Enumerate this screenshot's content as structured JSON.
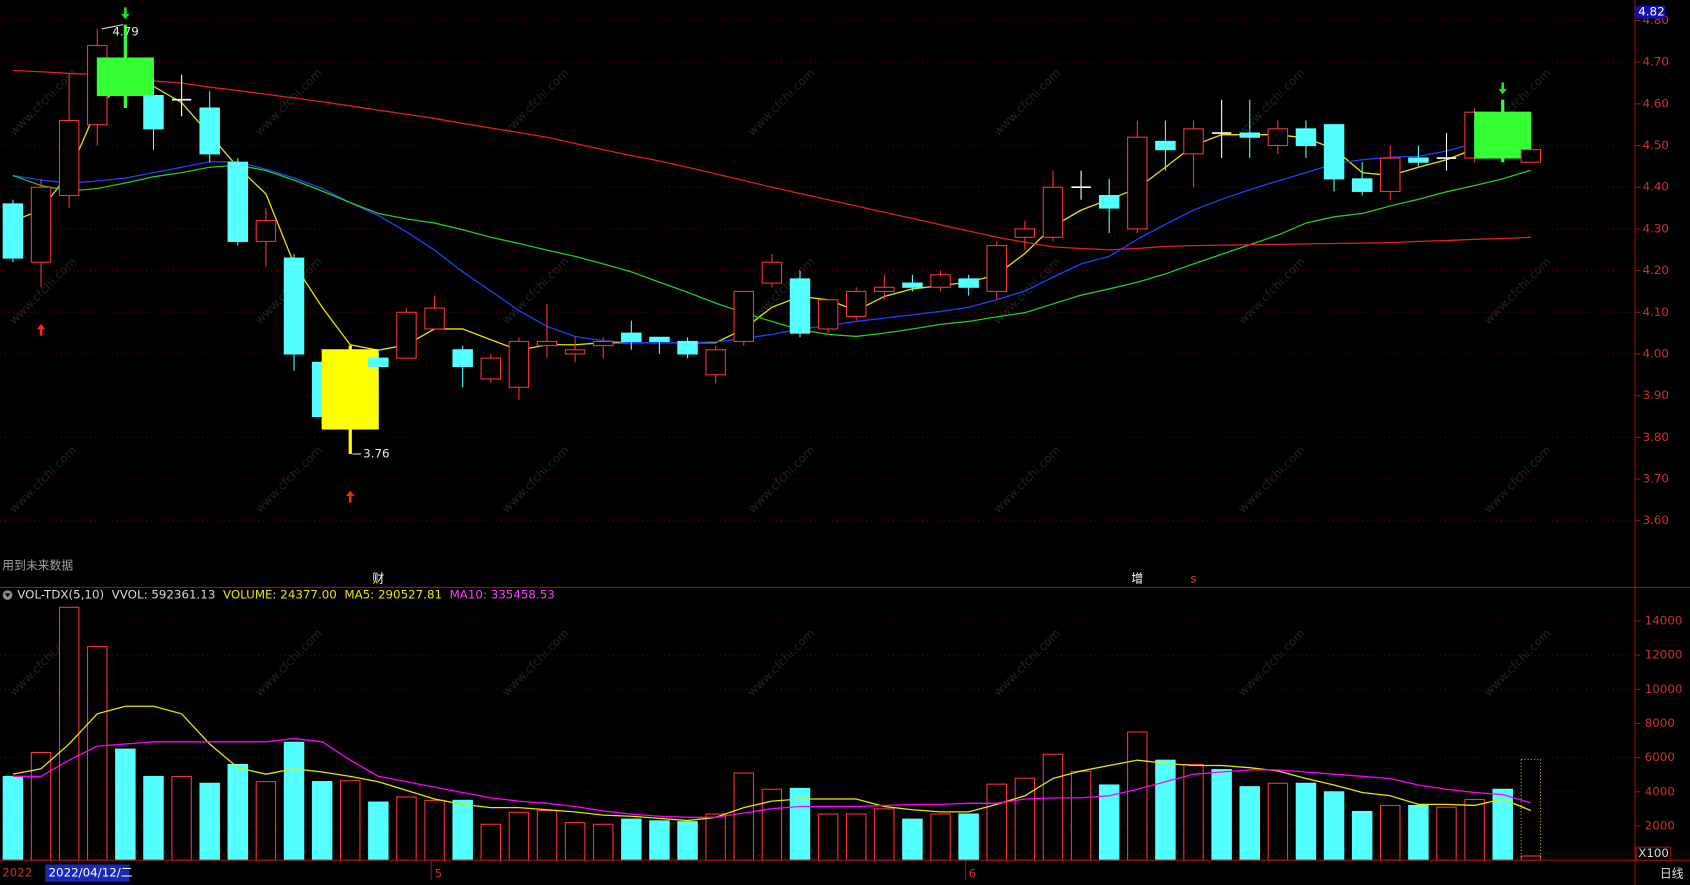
{
  "chart_data": [
    {
      "type": "candlestick",
      "up_color": "#ff3232",
      "down_color": "#54ffff",
      "doji_color": "#ffffff",
      "open": [
        4.36,
        4.22,
        4.38,
        4.55,
        4.71,
        4.62,
        4.61,
        4.59,
        4.46,
        4.27,
        4.23,
        3.98,
        3.82,
        3.99,
        3.99,
        4.06,
        4.01,
        3.94,
        3.92,
        4.02,
        4.0,
        4.02,
        4.05,
        4.04,
        4.03,
        3.95,
        4.03,
        4.17,
        4.18,
        4.06,
        4.09,
        4.15,
        4.17,
        4.16,
        4.18,
        4.15,
        4.28,
        4.28,
        4.4,
        4.38,
        4.3,
        4.51,
        4.48,
        4.53,
        4.53,
        4.5,
        4.54,
        4.55,
        4.42,
        4.39,
        4.47,
        4.47,
        4.47,
        4.58,
        4.46
      ],
      "high": [
        4.37,
        4.42,
        4.67,
        4.78,
        4.79,
        4.66,
        4.67,
        4.63,
        4.47,
        4.35,
        4.24,
        3.98,
        4.02,
        4.0,
        4.11,
        4.14,
        4.02,
        4.0,
        4.04,
        4.12,
        4.04,
        4.04,
        4.08,
        4.04,
        4.04,
        4.02,
        4.15,
        4.24,
        4.2,
        4.13,
        4.16,
        4.19,
        4.19,
        4.2,
        4.19,
        4.27,
        4.32,
        4.44,
        4.44,
        4.42,
        4.56,
        4.56,
        4.56,
        4.61,
        4.61,
        4.56,
        4.56,
        4.55,
        4.46,
        4.5,
        4.5,
        4.53,
        4.59,
        4.61,
        4.49
      ],
      "low": [
        4.22,
        4.16,
        4.35,
        4.5,
        4.59,
        4.49,
        4.57,
        4.46,
        4.26,
        4.21,
        3.96,
        3.83,
        3.76,
        3.96,
        3.99,
        4.06,
        3.92,
        3.93,
        3.89,
        3.99,
        3.98,
        3.99,
        4.01,
        4.0,
        3.99,
        3.93,
        4.02,
        4.16,
        4.04,
        4.05,
        4.08,
        4.13,
        4.15,
        4.15,
        4.14,
        4.13,
        4.25,
        4.27,
        4.37,
        4.29,
        4.29,
        4.44,
        4.4,
        4.47,
        4.47,
        4.48,
        4.47,
        4.39,
        4.38,
        4.37,
        4.45,
        4.44,
        4.46,
        4.46,
        4.46
      ],
      "close": [
        4.23,
        4.4,
        4.56,
        4.74,
        4.62,
        4.54,
        4.61,
        4.48,
        4.27,
        4.32,
        4.0,
        3.85,
        4.01,
        3.97,
        4.1,
        4.11,
        3.97,
        3.99,
        4.03,
        4.03,
        4.01,
        4.03,
        4.03,
        4.03,
        4.0,
        4.01,
        4.15,
        4.22,
        4.05,
        4.13,
        4.15,
        4.16,
        4.16,
        4.19,
        4.16,
        4.26,
        4.3,
        4.4,
        4.4,
        4.35,
        4.52,
        4.49,
        4.54,
        4.53,
        4.52,
        4.54,
        4.5,
        4.42,
        4.39,
        4.47,
        4.46,
        4.47,
        4.58,
        4.47,
        4.49
      ],
      "series": [
        {
          "color": "#e6e600",
          "values": [
            4.319,
            4.345,
            4.435,
            4.591,
            4.655,
            4.642,
            4.603,
            4.526,
            4.448,
            4.384,
            4.216,
            4.112,
            4.022,
            4.009,
            4.022,
            4.06,
            4.06,
            4.034,
            4.009,
            4.022,
            4.022,
            4.027,
            4.027,
            4.027,
            4.027,
            4.027,
            4.06,
            4.112,
            4.138,
            4.13,
            4.104,
            4.138,
            4.156,
            4.164,
            4.172,
            4.19,
            4.241,
            4.306,
            4.345,
            4.371,
            4.397,
            4.448,
            4.5,
            4.526,
            4.526,
            4.526,
            4.518,
            4.492,
            4.435,
            4.428,
            4.448,
            4.466,
            4.492,
            4.513,
            4.5
          ]
        },
        {
          "color": "#2040ff",
          "values": [
            4.428,
            4.417,
            4.41,
            4.415,
            4.422,
            4.435,
            4.448,
            4.461,
            4.461,
            4.443,
            4.422,
            4.397,
            4.363,
            4.332,
            4.293,
            4.249,
            4.197,
            4.151,
            4.104,
            4.066,
            4.042,
            4.032,
            4.027,
            4.027,
            4.027,
            4.029,
            4.037,
            4.047,
            4.06,
            4.068,
            4.078,
            4.086,
            4.094,
            4.102,
            4.112,
            4.13,
            4.151,
            4.184,
            4.216,
            4.234,
            4.275,
            4.311,
            4.345,
            4.371,
            4.394,
            4.415,
            4.435,
            4.456,
            4.466,
            4.472,
            4.474,
            4.487,
            4.505,
            4.518,
            4.53
          ]
        },
        {
          "color": "#22cc22",
          "values": [
            4.428,
            4.404,
            4.391,
            4.397,
            4.41,
            4.425,
            4.435,
            4.448,
            4.453,
            4.44,
            4.417,
            4.391,
            4.363,
            4.337,
            4.324,
            4.314,
            4.298,
            4.28,
            4.265,
            4.249,
            4.234,
            4.216,
            4.197,
            4.172,
            4.148,
            4.122,
            4.099,
            4.078,
            4.058,
            4.047,
            4.042,
            4.05,
            4.06,
            4.071,
            4.078,
            4.089,
            4.099,
            4.12,
            4.141,
            4.156,
            4.172,
            4.192,
            4.216,
            4.239,
            4.262,
            4.285,
            4.314,
            4.329,
            4.337,
            4.355,
            4.371,
            4.389,
            4.404,
            4.42,
            4.441
          ]
        },
        {
          "color": "#e02020",
          "values": [
            4.68,
            4.677,
            4.673,
            4.67,
            4.66,
            4.655,
            4.65,
            4.64,
            4.632,
            4.623,
            4.614,
            4.605,
            4.595,
            4.585,
            4.575,
            4.565,
            4.553,
            4.542,
            4.531,
            4.52,
            4.505,
            4.49,
            4.476,
            4.463,
            4.448,
            4.432,
            4.416,
            4.4,
            4.385,
            4.37,
            4.355,
            4.34,
            4.325,
            4.31,
            4.295,
            4.28,
            4.268,
            4.257,
            4.253,
            4.25,
            4.253,
            4.258,
            4.26,
            4.261,
            4.262,
            4.263,
            4.264,
            4.265,
            4.266,
            4.267,
            4.27,
            4.272,
            4.275,
            4.277,
            4.28
          ]
        }
      ],
      "highlights": [
        {
          "index": 4,
          "color": "#33ff33"
        },
        {
          "index": 12,
          "color": "#ffff00"
        },
        {
          "index": 53,
          "color": "#33ff33"
        }
      ],
      "signals": [
        {
          "index": 1,
          "direction": "up"
        },
        {
          "index": 12,
          "direction": "up"
        },
        {
          "index": 4,
          "direction": "down"
        },
        {
          "index": 53,
          "direction": "down"
        }
      ],
      "events": [
        {
          "index": 13,
          "label": "财",
          "color": "#ffffff"
        },
        {
          "index": 40,
          "label": "增",
          "color": "#ffffff"
        },
        {
          "index": 42,
          "label": "s",
          "color": "#ff3030"
        }
      ],
      "note": "用到未来数据",
      "current_label": {
        "value": 4.82,
        "label": "4.82"
      },
      "ylim": [
        3.445,
        4.849
      ],
      "yticks": [
        {
          "value": 3.6,
          "label": "3.60"
        },
        {
          "value": 3.7,
          "label": "3.70"
        },
        {
          "value": 3.8,
          "label": "3.80"
        },
        {
          "value": 3.9,
          "label": "3.90"
        },
        {
          "value": 4.0,
          "label": "4.00"
        },
        {
          "value": 4.1,
          "label": "4.10"
        },
        {
          "value": 4.2,
          "label": "4.20"
        },
        {
          "value": 4.3,
          "label": "4.30"
        },
        {
          "value": 4.4,
          "label": "4.40"
        },
        {
          "value": 4.5,
          "label": "4.50"
        },
        {
          "value": 4.6,
          "label": "4.60"
        },
        {
          "value": 4.7,
          "label": "4.70"
        },
        {
          "value": 4.8,
          "label": "4.80"
        }
      ],
      "grid": true
    },
    {
      "type": "bar",
      "header": [
        {
          "text": "VOL-TDX(5,10)",
          "color": "#d8d8d8"
        },
        {
          "text": "VVOL: 592361.13",
          "color": "#d8d8d8"
        },
        {
          "text": "VOLUME: 24377.00",
          "color": "#e6e600"
        },
        {
          "text": "MA5: 290527.81",
          "color": "#e6e600"
        },
        {
          "text": "MA10: 335458.53",
          "color": "#ff40ff"
        }
      ],
      "categories": [
        null,
        null,
        null,
        null,
        null,
        null,
        null,
        null,
        null,
        null,
        null,
        null,
        null,
        null,
        null,
        "5",
        null,
        null,
        null,
        null,
        null,
        null,
        null,
        null,
        null,
        null,
        null,
        null,
        null,
        null,
        null,
        null,
        null,
        null,
        "6",
        null,
        null,
        null,
        null,
        null,
        null,
        null,
        null,
        null,
        null,
        null,
        null,
        null,
        null,
        null,
        null,
        null,
        null,
        null,
        null
      ],
      "values": [
        4900,
        6300,
        14800,
        12500,
        6500,
        4900,
        4900,
        4500,
        5600,
        4600,
        6900,
        4600,
        4650,
        3400,
        3700,
        3500,
        3500,
        2100,
        2800,
        2900,
        2200,
        2100,
        2400,
        2300,
        2250,
        2700,
        5100,
        4150,
        4200,
        2700,
        2700,
        3000,
        2400,
        2700,
        2700,
        4450,
        4800,
        6200,
        5200,
        4400,
        7500,
        5850,
        5600,
        5300,
        4300,
        4500,
        4500,
        4000,
        2850,
        3200,
        3200,
        3100,
        3550,
        4150,
        243.77
      ],
      "projection": 5900,
      "projection_color": "#d4b000",
      "series": [
        {
          "color": "#e6e600",
          "values": [
            5033,
            5349,
            6801,
            8569,
            9011,
            9011,
            8569,
            6801,
            5412,
            5033,
            5349,
            5160,
            4907,
            4592,
            4087,
            3581,
            3265,
            3076,
            3076,
            2950,
            2824,
            2634,
            2571,
            2445,
            2318,
            2508,
            3076,
            3455,
            3581,
            3581,
            3581,
            3139,
            2950,
            2824,
            2824,
            3265,
            3770,
            4781,
            5223,
            5539,
            5855,
            5665,
            5539,
            5539,
            5412,
            5223,
            4781,
            4402,
            3960,
            3770,
            3265,
            3265,
            3202,
            3581,
            2905.2781
          ]
        },
        {
          "color": "#ff00ff",
          "values": [
            4907,
            4907,
            5854,
            6675,
            6801,
            6928,
            6928,
            6928,
            6928,
            6928,
            7117,
            6928,
            5854,
            4907,
            4591,
            4275,
            3959,
            3644,
            3454,
            3328,
            3139,
            2886,
            2697,
            2571,
            2507,
            2507,
            2760,
            3012,
            3139,
            3139,
            3139,
            3202,
            3265,
            3265,
            3328,
            3328,
            3580,
            3644,
            3644,
            3770,
            4149,
            4591,
            5033,
            5160,
            5286,
            5286,
            5160,
            5033,
            4907,
            4780,
            4401,
            4149,
            3959,
            3833,
            3354.5853
          ]
        }
      ],
      "unit_label": "X100",
      "ylim": [
        0,
        15900
      ],
      "yticks": [
        2000,
        4000,
        6000,
        8000,
        10000,
        12000,
        14000
      ],
      "grid": true
    }
  ],
  "status": {
    "year": "2022",
    "cursor_date": "2022/04/12/二",
    "period": "日线"
  },
  "watermark": "www.cfchi.com"
}
